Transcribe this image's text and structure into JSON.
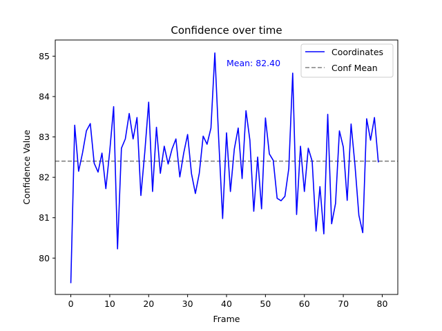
{
  "chart_data": {
    "type": "line",
    "title": "Confidence over time",
    "xlabel": "Frame",
    "ylabel": "Confidence Value",
    "xlim": [
      -4,
      84
    ],
    "ylim": [
      79.1,
      85.4
    ],
    "xticks": [
      0,
      10,
      20,
      30,
      40,
      50,
      60,
      70,
      80
    ],
    "yticks": [
      80,
      81,
      82,
      83,
      84,
      85
    ],
    "grid": false,
    "legend_position": "top-right",
    "series": [
      {
        "name": "Coordinates",
        "color": "#0000ff",
        "style": "solid",
        "x": [
          0,
          1,
          2,
          3,
          4,
          5,
          6,
          7,
          8,
          9,
          10,
          11,
          12,
          13,
          14,
          15,
          16,
          17,
          18,
          19,
          20,
          21,
          22,
          23,
          24,
          25,
          26,
          27,
          28,
          29,
          30,
          31,
          32,
          33,
          34,
          35,
          36,
          37,
          38,
          39,
          40,
          41,
          42,
          43,
          44,
          45,
          46,
          47,
          48,
          49,
          50,
          51,
          52,
          53,
          54,
          55,
          56,
          57,
          58,
          59,
          60,
          61,
          62,
          63,
          64,
          65,
          66,
          67,
          68,
          69,
          70,
          71,
          72,
          73,
          74,
          75,
          76,
          77,
          78,
          79
        ],
        "values": [
          79.38,
          83.29,
          82.15,
          82.6,
          83.15,
          83.33,
          82.35,
          82.13,
          82.6,
          81.72,
          82.65,
          83.75,
          80.23,
          82.72,
          82.95,
          83.58,
          82.95,
          83.48,
          81.55,
          82.62,
          83.86,
          81.65,
          83.24,
          82.1,
          82.77,
          82.33,
          82.7,
          82.95,
          82.01,
          82.6,
          83.06,
          82.09,
          81.6,
          82.1,
          83.02,
          82.82,
          83.22,
          85.08,
          82.92,
          80.98,
          83.1,
          81.65,
          82.7,
          83.22,
          81.97,
          83.65,
          82.92,
          81.16,
          82.5,
          81.22,
          83.47,
          82.58,
          82.42,
          81.48,
          81.42,
          81.53,
          82.22,
          84.58,
          81.08,
          82.77,
          81.65,
          82.72,
          82.4,
          80.67,
          81.77,
          80.6,
          83.56,
          80.85,
          81.35,
          83.15,
          82.75,
          81.43,
          83.32,
          82.3,
          81.06,
          80.63,
          83.45,
          82.92,
          83.48,
          82.37
        ]
      },
      {
        "name": "Conf Mean",
        "color": "#808080",
        "style": "dashed",
        "value": 82.4
      }
    ],
    "annotations": [
      {
        "text": "Mean: 82.40",
        "x": 40,
        "y": 84.75,
        "color": "#0000ff"
      }
    ]
  }
}
